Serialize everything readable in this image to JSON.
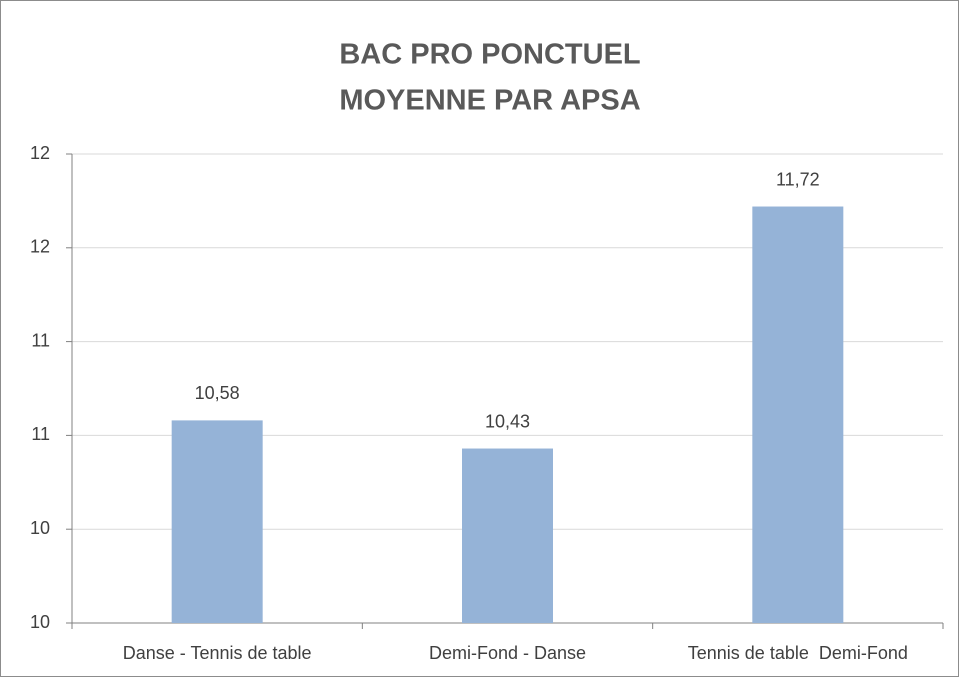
{
  "chart_data": {
    "type": "bar",
    "title": "BAC PRO PONCTUEL",
    "subtitle": "MOYENNE PAR APSA",
    "categories": [
      "Danse - Tennis de table",
      "Demi-Fond - Danse",
      "Tennis de table  Demi-Fond"
    ],
    "values": [
      10.58,
      10.43,
      11.72
    ],
    "value_labels": [
      "10,58",
      "10,43",
      "11,72"
    ],
    "color": "#95b3d7",
    "ylim": [
      9.5,
      12
    ],
    "yticks": [
      {
        "value": 9.5,
        "label": "10"
      },
      10,
      {
        "value": 10.5,
        "label": "11"
      },
      11,
      {
        "value": 11.5,
        "label": "12"
      },
      12
    ],
    "grid": true
  }
}
